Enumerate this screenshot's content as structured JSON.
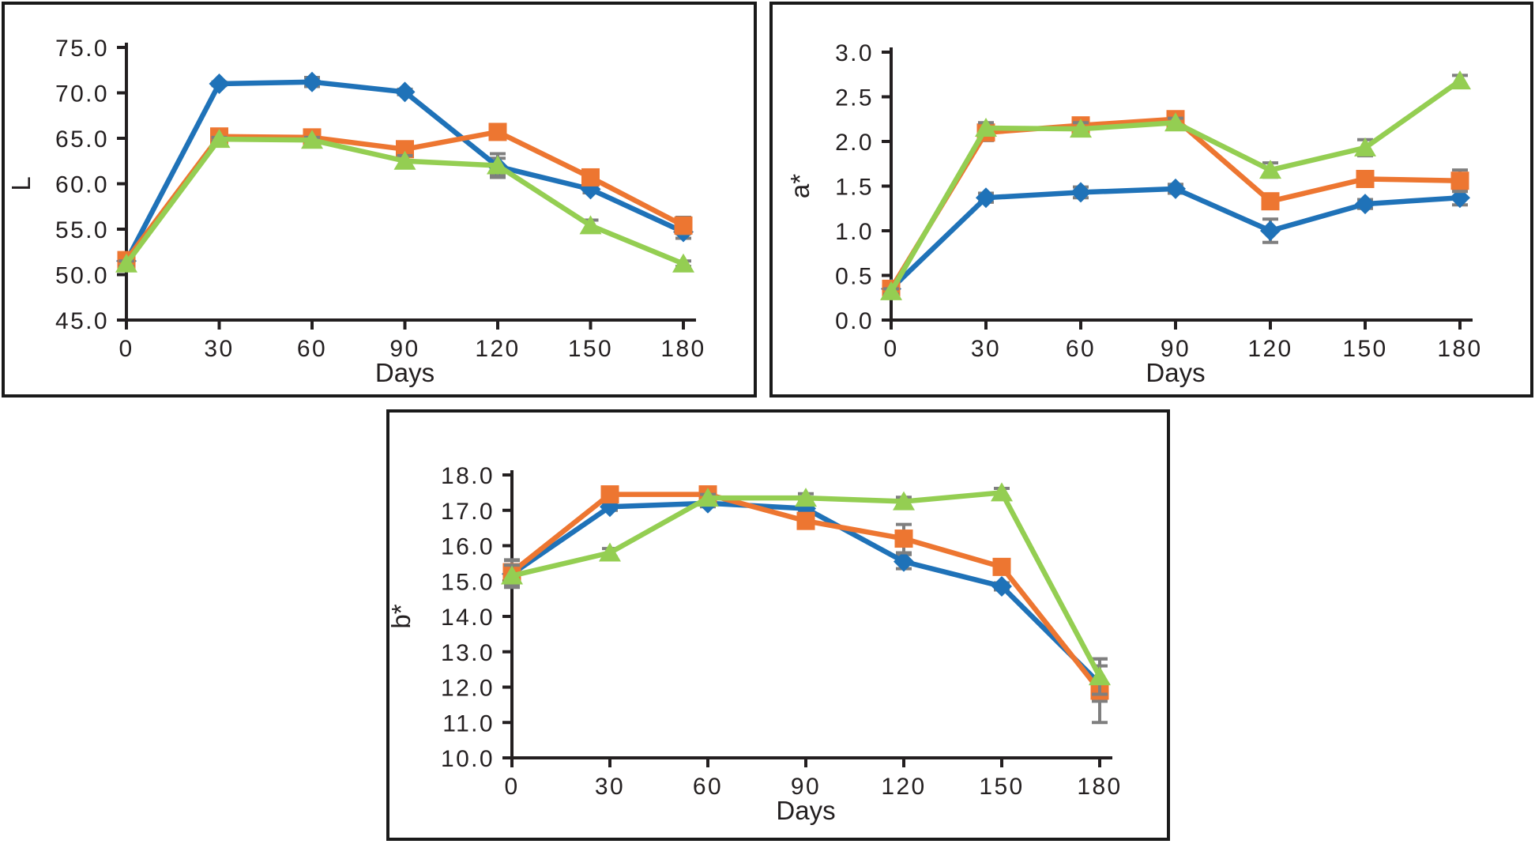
{
  "figure": {
    "background": "#ffffff",
    "frame_color": "#1a1a1a",
    "axis_color": "#231f20",
    "error_bar_color": "#7f7f7f",
    "series_colors": {
      "blue": "#1f72b8",
      "orange": "#ed7631",
      "green": "#94ce52"
    }
  },
  "chart_data": [
    {
      "id": "L",
      "type": "line",
      "title": "",
      "xlabel": "Days",
      "ylabel": "L",
      "x": [
        0,
        30,
        60,
        90,
        120,
        150,
        180
      ],
      "xticks": [
        "0",
        "30",
        "60",
        "90",
        "120",
        "150",
        "180"
      ],
      "ylim": [
        45.0,
        75.0
      ],
      "ytick_step": 5.0,
      "yticks": [
        "45.0",
        "50.0",
        "55.0",
        "60.0",
        "65.0",
        "70.0",
        "75.0"
      ],
      "grid": false,
      "legend": "none",
      "series": [
        {
          "name": "blue-diamond",
          "marker": "diamond",
          "color": "#1f72b8",
          "values": [
            51.5,
            71.0,
            71.2,
            70.1,
            61.9,
            59.4,
            54.7
          ],
          "errors": [
            0.3,
            0.2,
            0.5,
            0.3,
            0.9,
            0.4,
            0.7
          ]
        },
        {
          "name": "orange-square",
          "marker": "square",
          "color": "#ed7631",
          "values": [
            51.6,
            65.2,
            65.1,
            63.8,
            65.7,
            60.7,
            55.4
          ],
          "errors": [
            0.4,
            0.3,
            0.3,
            0.5,
            0.4,
            0.7,
            0.9
          ]
        },
        {
          "name": "green-triangle",
          "marker": "triangle",
          "color": "#94ce52",
          "values": [
            51.2,
            64.9,
            64.8,
            62.5,
            62.0,
            55.4,
            51.2
          ],
          "errors": [
            0.3,
            0.2,
            0.3,
            0.6,
            1.3,
            0.6,
            0.3
          ]
        }
      ]
    },
    {
      "id": "a",
      "type": "line",
      "title": "",
      "xlabel": "Days",
      "ylabel": "a*",
      "x": [
        0,
        30,
        60,
        90,
        120,
        150,
        180
      ],
      "xticks": [
        "0",
        "30",
        "60",
        "90",
        "120",
        "150",
        "180"
      ],
      "ylim": [
        0.0,
        3.0
      ],
      "ytick_step": 0.5,
      "yticks": [
        "0.0",
        "0.5",
        "1.0",
        "1.5",
        "2.0",
        "2.5",
        "3.0"
      ],
      "grid": false,
      "legend": "none",
      "series": [
        {
          "name": "blue-diamond",
          "marker": "diamond",
          "color": "#1f72b8",
          "values": [
            0.35,
            1.37,
            1.43,
            1.47,
            1.0,
            1.3,
            1.37
          ],
          "errors": [
            0.03,
            0.05,
            0.06,
            0.05,
            0.13,
            0.05,
            0.08
          ]
        },
        {
          "name": "orange-square",
          "marker": "square",
          "color": "#ed7631",
          "values": [
            0.35,
            2.1,
            2.18,
            2.25,
            1.33,
            1.58,
            1.56
          ],
          "errors": [
            0.04,
            0.09,
            0.07,
            0.06,
            0.08,
            0.05,
            0.12
          ]
        },
        {
          "name": "green-triangle",
          "marker": "triangle",
          "color": "#94ce52",
          "values": [
            0.32,
            2.15,
            2.14,
            2.21,
            1.68,
            1.93,
            2.68
          ],
          "errors": [
            0.03,
            0.06,
            0.07,
            0.05,
            0.08,
            0.09,
            0.06
          ]
        }
      ]
    },
    {
      "id": "b",
      "type": "line",
      "title": "",
      "xlabel": "Days",
      "ylabel": "b*",
      "x": [
        0,
        30,
        60,
        90,
        120,
        150,
        180
      ],
      "xticks": [
        "0",
        "30",
        "60",
        "90",
        "120",
        "150",
        "180"
      ],
      "ylim": [
        10.0,
        18.0
      ],
      "ytick_step": 1.0,
      "yticks": [
        "10.0",
        "11.0",
        "12.0",
        "13.0",
        "14.0",
        "15.0",
        "16.0",
        "17.0",
        "18.0"
      ],
      "grid": false,
      "legend": "none",
      "series": [
        {
          "name": "blue-diamond",
          "marker": "diamond",
          "color": "#1f72b8",
          "values": [
            15.2,
            17.1,
            17.2,
            17.05,
            15.55,
            14.85,
            12.1
          ],
          "errors": [
            0.38,
            0.1,
            0.1,
            0.12,
            0.2,
            0.1,
            0.5
          ]
        },
        {
          "name": "orange-square",
          "marker": "square",
          "color": "#ed7631",
          "values": [
            15.25,
            17.45,
            17.45,
            16.7,
            16.2,
            15.4,
            11.9
          ],
          "errors": [
            0.35,
            0.1,
            0.1,
            0.1,
            0.4,
            0.15,
            0.9
          ]
        },
        {
          "name": "green-triangle",
          "marker": "triangle",
          "color": "#94ce52",
          "values": [
            15.15,
            15.8,
            17.35,
            17.35,
            17.25,
            17.5,
            12.3
          ],
          "errors": [
            0.3,
            0.12,
            0.1,
            0.12,
            0.12,
            0.12,
            0.5
          ]
        }
      ]
    }
  ]
}
